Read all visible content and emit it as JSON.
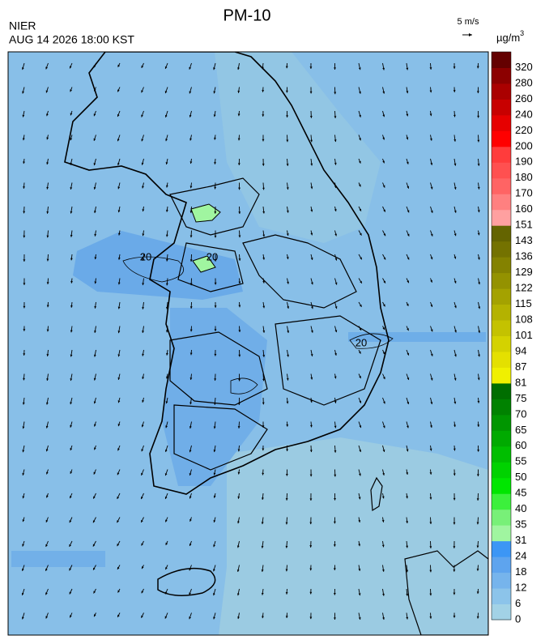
{
  "header": {
    "title": "PM-10",
    "agency": "NIER",
    "datetime": "AUG 14 2026 18:00 KST",
    "wind_scale": "5 m/s",
    "unit": "µg/m",
    "unit_exponent": "3"
  },
  "map": {
    "contour_labels": [
      "20",
      "20",
      "20"
    ]
  },
  "colorbar": [
    {
      "label": "0",
      "color": "#a2d2e6"
    },
    {
      "label": "6",
      "color": "#8cc4ea"
    },
    {
      "label": "12",
      "color": "#76b4ec"
    },
    {
      "label": "18",
      "color": "#5ea4ee"
    },
    {
      "label": "24",
      "color": "#3c96f5"
    },
    {
      "label": "31",
      "color": "#a0f5a0"
    },
    {
      "label": "35",
      "color": "#78f078"
    },
    {
      "label": "40",
      "color": "#3cf03c"
    },
    {
      "label": "45",
      "color": "#00e600"
    },
    {
      "label": "50",
      "color": "#00d200"
    },
    {
      "label": "55",
      "color": "#00be00"
    },
    {
      "label": "60",
      "color": "#00aa00"
    },
    {
      "label": "65",
      "color": "#009600"
    },
    {
      "label": "70",
      "color": "#008200"
    },
    {
      "label": "75",
      "color": "#006e00"
    },
    {
      "label": "81",
      "color": "#f0f000"
    },
    {
      "label": "87",
      "color": "#e4e000"
    },
    {
      "label": "94",
      "color": "#d4d200"
    },
    {
      "label": "101",
      "color": "#c4c200"
    },
    {
      "label": "108",
      "color": "#b4b200"
    },
    {
      "label": "115",
      "color": "#a4a200"
    },
    {
      "label": "122",
      "color": "#949200"
    },
    {
      "label": "129",
      "color": "#848200"
    },
    {
      "label": "136",
      "color": "#747200"
    },
    {
      "label": "143",
      "color": "#646400"
    },
    {
      "label": "151",
      "color": "#ffa0a0"
    },
    {
      "label": "160",
      "color": "#ff8080"
    },
    {
      "label": "170",
      "color": "#ff6464"
    },
    {
      "label": "180",
      "color": "#ff5050"
    },
    {
      "label": "190",
      "color": "#ff3c3c"
    },
    {
      "label": "200",
      "color": "#ff0000"
    },
    {
      "label": "220",
      "color": "#e60000"
    },
    {
      "label": "240",
      "color": "#c80000"
    },
    {
      "label": "260",
      "color": "#aa0000"
    },
    {
      "label": "280",
      "color": "#8c0000"
    },
    {
      "label": "320",
      "color": "#640000"
    }
  ]
}
